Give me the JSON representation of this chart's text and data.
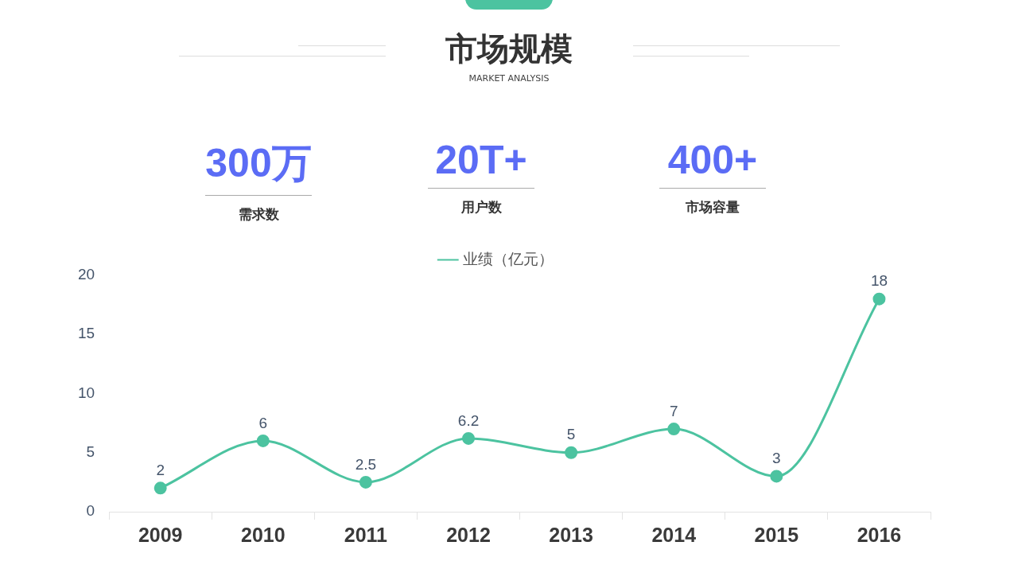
{
  "chart_data": [
    {
      "type": "other",
      "title": "市场规模",
      "subtitle": "MARKET ANALYSIS",
      "annotations": [
        "300万",
        "需求数",
        "20T+",
        "用户数",
        "400+",
        "市场容量"
      ]
    },
    {
      "type": "line",
      "categories": [
        "2009",
        "2010",
        "2011",
        "2012",
        "2013",
        "2014",
        "2015",
        "2016"
      ],
      "series": [
        {
          "name": "业绩（亿元）",
          "color": "#4cc3a0",
          "values": [
            2,
            6,
            2.5,
            6.2,
            5,
            7,
            3,
            18
          ]
        }
      ],
      "ylim": [
        0,
        20
      ],
      "yticks": [
        0,
        5,
        10,
        15,
        20
      ],
      "grid": false,
      "legend": "top",
      "data_labels": true,
      "marker": "circle",
      "line_style": "solid"
    }
  ]
}
